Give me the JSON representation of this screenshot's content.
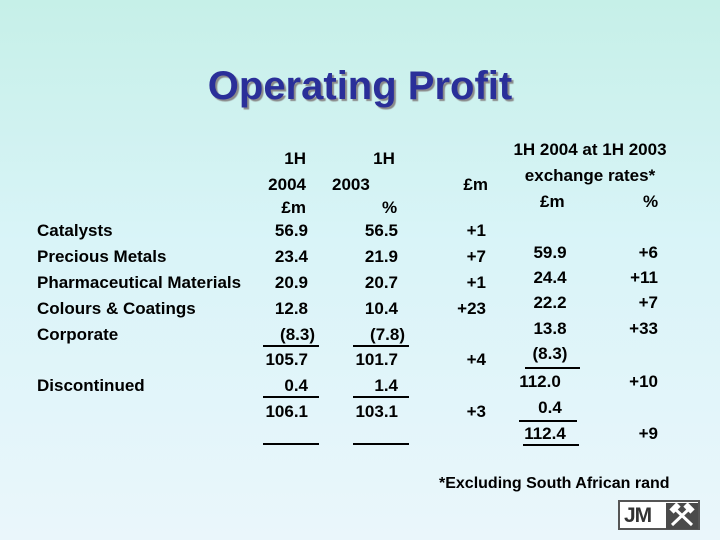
{
  "title": "Operating Profit",
  "headers": {
    "col_2004": [
      "1H",
      "2004",
      "£m"
    ],
    "col_2003": [
      "1H",
      "2003"
    ],
    "pct": "%",
    "change": "£m",
    "fx": [
      "1H 2004 at 1H 2003",
      "exchange rates*"
    ],
    "fx_m": "£m",
    "fx_pct": "%"
  },
  "rows": [
    {
      "label": "Catalysts",
      "v2004": "56.9",
      "v2003": "56.5",
      "chg": "+1"
    },
    {
      "label": "Precious Metals",
      "v2004": "23.4",
      "v2003": "21.9",
      "chg": "+7"
    },
    {
      "label": "Pharmaceutical Materials",
      "v2004": "20.9",
      "v2003": "20.7",
      "chg": "+1"
    },
    {
      "label": "Colours & Coatings",
      "v2004": "12.8",
      "v2003": "10.4",
      "chg": "+23"
    },
    {
      "label": "Corporate",
      "v2004": "(8.3)",
      "v2003": "(7.8)",
      "chg": ""
    }
  ],
  "subtotal": {
    "v2004": "105.7",
    "v2003": "101.7",
    "chg": "+4"
  },
  "discontinued": {
    "label": "Discontinued",
    "v2004": "0.4",
    "v2003": "1.4"
  },
  "total": {
    "v2004": "106.1",
    "v2003": "103.1",
    "chg": "+3"
  },
  "fx_rows": [
    {
      "m": "59.9",
      "pct": "+6"
    },
    {
      "m": "24.4",
      "pct": "+11"
    },
    {
      "m": "22.2",
      "pct": "+7"
    },
    {
      "m": "13.8",
      "pct": "+33"
    },
    {
      "m": "(8.3)",
      "pct": ""
    },
    {
      "m": "112.0",
      "pct": "+10"
    },
    {
      "m": "0.4",
      "pct": ""
    },
    {
      "m": "112.4",
      "pct": "+9"
    }
  ],
  "footnote": "*Excluding South African rand",
  "logo": {
    "text": "JM",
    "icon": "crossed-hammers-icon"
  }
}
